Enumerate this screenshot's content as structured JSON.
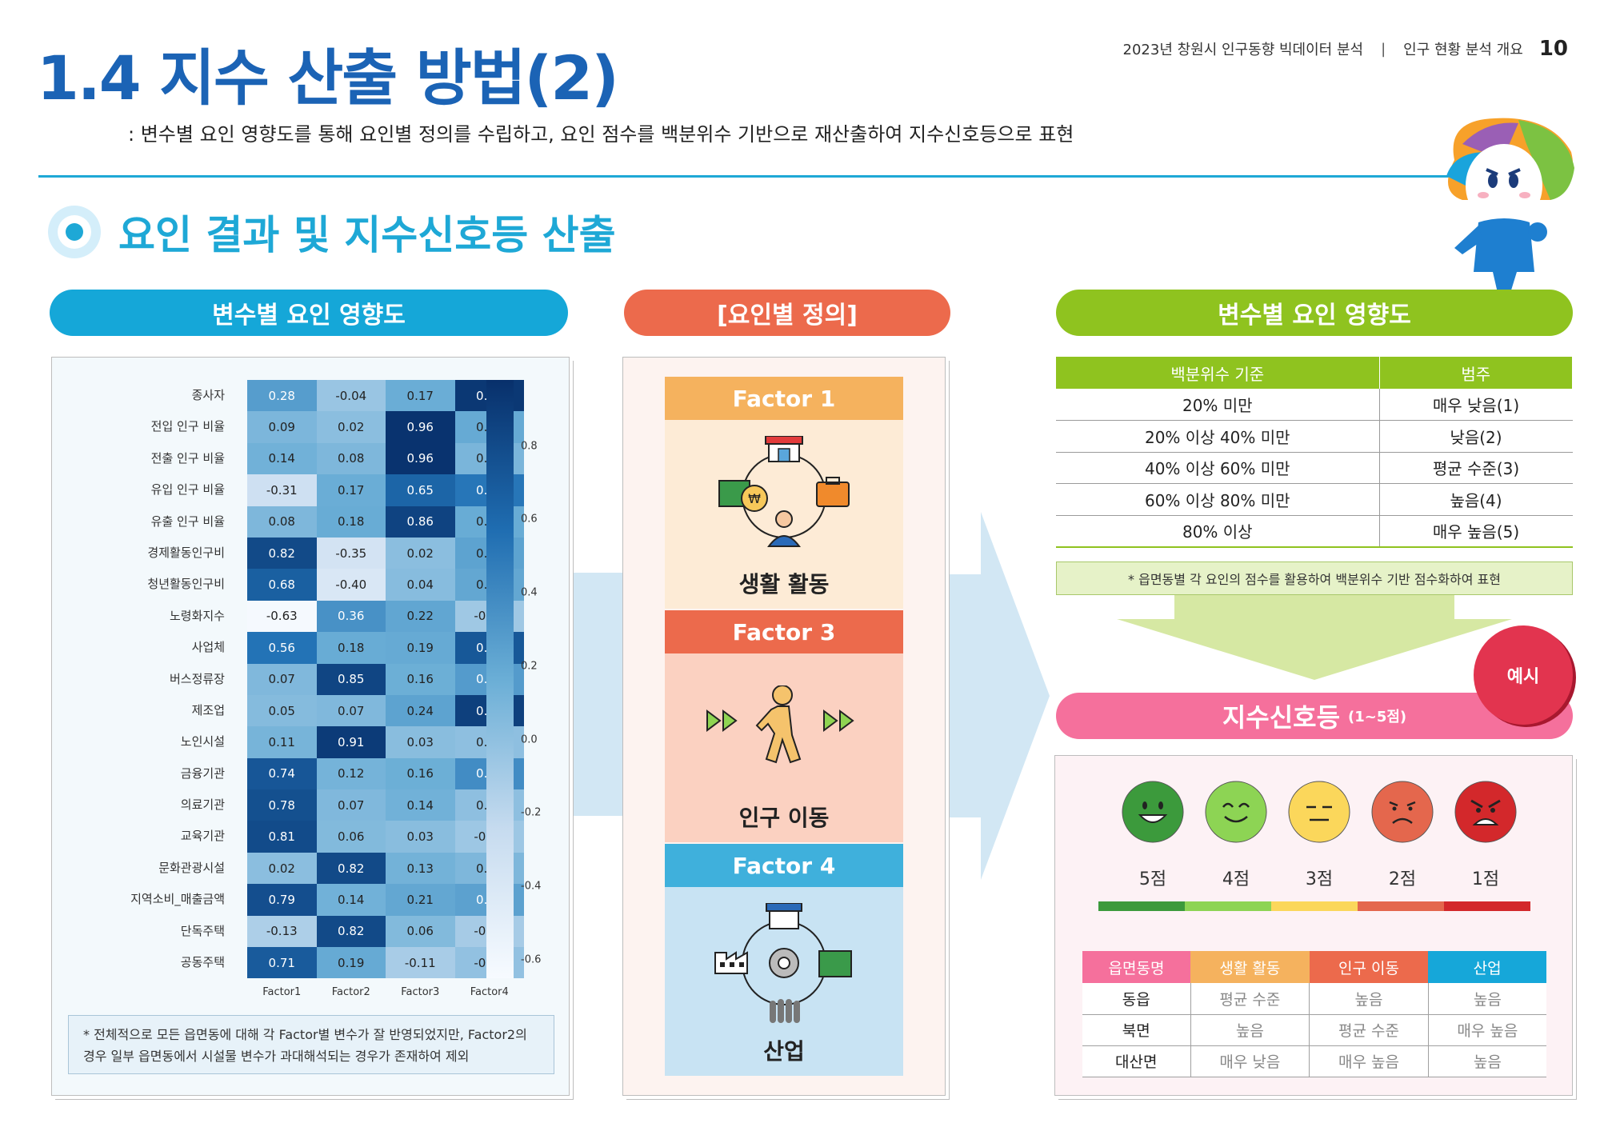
{
  "header": {
    "title": "1.4 지수 산출 방법(2)",
    "report": "2023년 창원시 인구동향 빅데이터 분석",
    "separator": "|",
    "section": "인구 현황 분석 개요",
    "page_number": "10",
    "subtitle": ": 변수별 요인 영향도를 통해 요인별 정의를 수립하고, 요인 점수를 백분위수 기반으로 재산출하여 지수신호등으로 표현"
  },
  "section_heading": "요인 결과 및 지수신호등 산출",
  "colors": {
    "blue": "#15a7d8",
    "orange": "#ec6a4c",
    "green": "#8fc31f",
    "pink": "#f5709c",
    "title_blue": "#1b63b5"
  },
  "left_panel": {
    "title": "변수별 요인 영향도",
    "note": "* 전체적으로 모든 읍면동에 대해 각 Factor별 변수가 잘 반영되었지만, Factor2의 경우 일부 읍면동에서 시설물 변수가 과대해석되는 경우가 존재하여 제외"
  },
  "chart_data": {
    "type": "heatmap",
    "title": "",
    "rows": [
      "종사자",
      "전입 인구 비율",
      "전출 인구 비율",
      "유입 인구 비율",
      "유출 인구 비율",
      "경제활동인구비",
      "청년활동인구비",
      "노령화지수",
      "사업체",
      "버스정류장",
      "제조업",
      "노인시설",
      "금융기관",
      "의료기관",
      "교육기관",
      "문화관광시설",
      "지역소비_매출금액",
      "단독주택",
      "공동주택"
    ],
    "columns": [
      "Factor1",
      "Factor2",
      "Factor3",
      "Factor4"
    ],
    "values": [
      [
        0.28,
        -0.04,
        0.17,
        0.93
      ],
      [
        0.09,
        0.02,
        0.96,
        0.19
      ],
      [
        0.14,
        0.08,
        0.96,
        0.1
      ],
      [
        -0.31,
        0.17,
        0.65,
        0.54
      ],
      [
        0.08,
        0.18,
        0.86,
        0.18
      ],
      [
        0.82,
        -0.35,
        0.02,
        0.24
      ],
      [
        0.68,
        -0.4,
        0.04,
        0.21
      ],
      [
        -0.63,
        0.36,
        0.22,
        -0.07
      ],
      [
        0.56,
        0.18,
        0.19,
        0.73
      ],
      [
        0.07,
        0.85,
        0.16,
        0.29
      ],
      [
        0.05,
        0.07,
        0.24,
        0.88
      ],
      [
        0.11,
        0.91,
        0.03,
        0.01
      ],
      [
        0.74,
        0.12,
        0.16,
        0.39
      ],
      [
        0.78,
        0.07,
        0.14,
        0.01
      ],
      [
        0.81,
        0.06,
        0.03,
        -0.06
      ],
      [
        0.02,
        0.82,
        0.13,
        0.08
      ],
      [
        0.79,
        0.14,
        0.21,
        0.25
      ],
      [
        -0.13,
        0.82,
        0.06,
        -0.1
      ],
      [
        0.71,
        0.19,
        -0.11,
        -0.01
      ]
    ],
    "labels": [
      [
        "0.28",
        "-0.04",
        "0.17",
        "0.93"
      ],
      [
        "0.09",
        "0.02",
        "0.96",
        "0.19"
      ],
      [
        "0.14",
        "0.08",
        "0.96",
        "0.10"
      ],
      [
        "-0.31",
        "0.17",
        "0.65",
        "0.54"
      ],
      [
        "0.08",
        "0.18",
        "0.86",
        "0.18"
      ],
      [
        "0.82",
        "-0.35",
        "0.02",
        "0.24"
      ],
      [
        "0.68",
        "-0.40",
        "0.04",
        "0.21"
      ],
      [
        "-0.63",
        "0.36",
        "0.22",
        "-0.07"
      ],
      [
        "0.56",
        "0.18",
        "0.19",
        "0.73"
      ],
      [
        "0.07",
        "0.85",
        "0.16",
        "0.29"
      ],
      [
        "0.05",
        "0.07",
        "0.24",
        "0.88"
      ],
      [
        "0.11",
        "0.91",
        "0.03",
        "0.01"
      ],
      [
        "0.74",
        "0.12",
        "0.16",
        "0.39"
      ],
      [
        "0.78",
        "0.07",
        "0.14",
        "0.01"
      ],
      [
        "0.81",
        "0.06",
        "0.03",
        "-0.06"
      ],
      [
        "0.02",
        "0.82",
        "0.13",
        "0.08"
      ],
      [
        "0.79",
        "0.14",
        "0.21",
        "0.25"
      ],
      [
        "-0.13",
        "0.82",
        "0.06",
        "-0.10"
      ],
      [
        "0.71",
        "0.19",
        "-0.11",
        "-0.01"
      ]
    ],
    "colorbar": {
      "range": [
        -0.65,
        0.98
      ],
      "ticks": [
        "0.8",
        "0.6",
        "0.4",
        "0.2",
        "0.0",
        "-0.2",
        "-0.4",
        "-0.6"
      ],
      "tick_values": [
        0.8,
        0.6,
        0.4,
        0.2,
        0.0,
        -0.2,
        -0.4,
        -0.6
      ]
    },
    "colormap": "Blues"
  },
  "mid_panel": {
    "title": "[요인별 정의]",
    "factors": [
      {
        "name": "Factor 1",
        "label": "생활 활동",
        "color": "#f5b25e",
        "bg": "#fdebd6"
      },
      {
        "name": "Factor 3",
        "label": "인구 이동",
        "color": "#ec6a4c",
        "bg": "#fbd1c1"
      },
      {
        "name": "Factor 4",
        "label": "산업",
        "color": "#3fb0dc",
        "bg": "#c8e3f3"
      }
    ]
  },
  "right_panel": {
    "title": "변수별 요인 영향도",
    "table_headers": [
      "백분위수 기준",
      "범주"
    ],
    "table_rows": [
      [
        "20% 미만",
        "매우 낮음(1)"
      ],
      [
        "20% 이상 40% 미만",
        "낮음(2)"
      ],
      [
        "40% 이상 60% 미만",
        "평균 수준(3)"
      ],
      [
        "60% 이상 80% 미만",
        "높음(4)"
      ],
      [
        "80% 이상",
        "매우 높음(5)"
      ]
    ],
    "note": "* 읍면동별 각 요인의 점수를 활용하여 백분위수 기반 점수화하여 표현",
    "signal_title": "지수신호등",
    "signal_range": "(1~5점)",
    "example": "예시",
    "faces": [
      {
        "score": "5점",
        "color": "#3c9a3c"
      },
      {
        "score": "4점",
        "color": "#8dd454"
      },
      {
        "score": "3점",
        "color": "#fbd75b"
      },
      {
        "score": "2점",
        "color": "#e4674d"
      },
      {
        "score": "1점",
        "color": "#d3282b"
      }
    ],
    "region_headers": [
      {
        "label": "읍면동명",
        "color": "#f5709c"
      },
      {
        "label": "생활 활동",
        "color": "#f5b25e"
      },
      {
        "label": "인구 이동",
        "color": "#ec6a4c"
      },
      {
        "label": "산업",
        "color": "#16a7d9"
      }
    ],
    "region_rows": [
      [
        "동읍",
        "평균 수준",
        "높음",
        "높음"
      ],
      [
        "북면",
        "높음",
        "평균 수준",
        "매우 높음"
      ],
      [
        "대산면",
        "매우 낮음",
        "매우 높음",
        "높음"
      ]
    ]
  }
}
